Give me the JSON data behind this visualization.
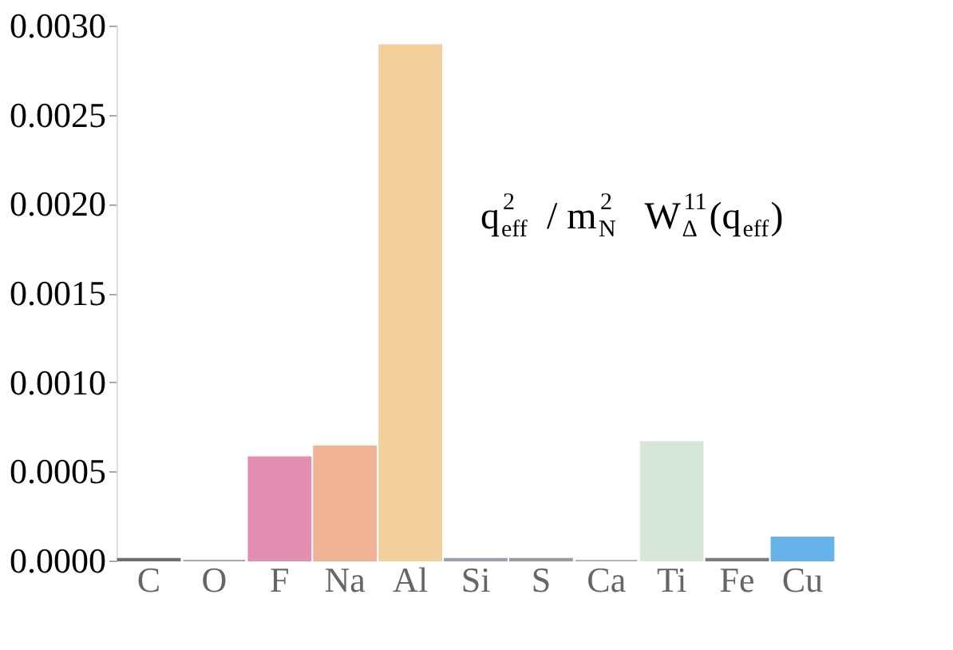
{
  "chart_data": {
    "type": "bar",
    "categories": [
      "C",
      "O",
      "F",
      "Na",
      "Al",
      "Si",
      "S",
      "Ca",
      "Ti",
      "Fe",
      "Cu"
    ],
    "values": [
      1e-05,
      0,
      0.00058,
      0.00064,
      0.00289,
      1e-05,
      1e-05,
      0,
      0.000665,
      1e-05,
      0.00013
    ],
    "colors": [
      "#555555",
      "#999999",
      "#df7ca4",
      "#eda583",
      "#f2c88a",
      "#8a8fa8",
      "#8a8a8a",
      "#aaaaaa",
      "#cfe3d4",
      "#666666",
      "#4da6e6"
    ],
    "ylim": [
      0,
      0.003
    ],
    "yticks": [
      {
        "value": 0,
        "label": "0.0000"
      },
      {
        "value": 0.0005,
        "label": "0.0005"
      },
      {
        "value": 0.001,
        "label": "0.0010"
      },
      {
        "value": 0.0015,
        "label": "0.0015"
      },
      {
        "value": 0.002,
        "label": "0.0020"
      },
      {
        "value": 0.0025,
        "label": "0.0025"
      },
      {
        "value": 0.003,
        "label": "0.0030"
      }
    ],
    "grid": false,
    "annotations": [
      "q$_{eff}$$^{2}$ / m$_{N}$$^{2}$  W$_{Δ}$$^{11}$(q$_{eff}$)"
    ]
  }
}
